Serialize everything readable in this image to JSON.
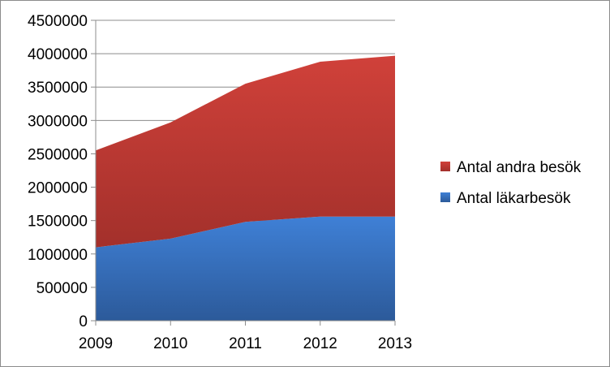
{
  "chart_data": {
    "type": "area",
    "stacked": true,
    "title": "",
    "xlabel": "",
    "ylabel": "",
    "categories": [
      "2009",
      "2010",
      "2011",
      "2012",
      "2013"
    ],
    "ylim": [
      0,
      4500000
    ],
    "yticks": [
      "0",
      "500000",
      "1000000",
      "1500000",
      "2000000",
      "2500000",
      "3000000",
      "3500000",
      "4000000",
      "4500000"
    ],
    "grid": true,
    "legend": "right",
    "series": [
      {
        "name": "Antal läkarbesök",
        "values": [
          1100000,
          1230000,
          1480000,
          1560000,
          1560000
        ],
        "color": "#3a75c4"
      },
      {
        "name": "Antal andra besök",
        "values": [
          1450000,
          1740000,
          2070000,
          2320000,
          2410000
        ],
        "color": "#c0392b"
      }
    ]
  }
}
